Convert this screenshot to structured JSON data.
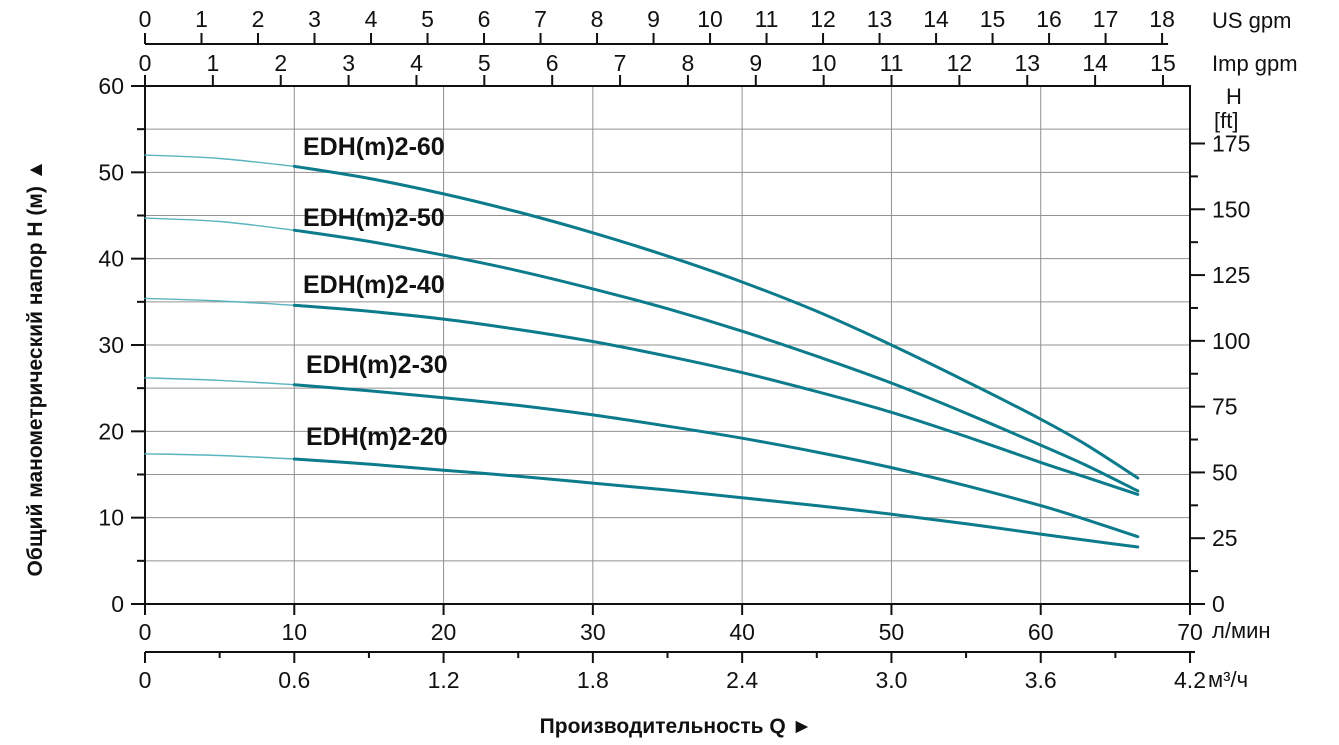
{
  "chart_data": {
    "type": "line",
    "title": "",
    "xlabel": "Производительность Q  ►",
    "ylabel": "Общий манометрический напор H (м)  ▲",
    "grid": true,
    "legend": "labels-on-chart",
    "colors": {
      "curve": "#0c7b8b",
      "curve_thin": "#5ab4be",
      "grid": "#919191",
      "axis": "#111111"
    },
    "axes": {
      "lpm": {
        "unit": "л/мин",
        "min": 0,
        "max": 70,
        "ticks": [
          0,
          10,
          20,
          30,
          40,
          50,
          60,
          70
        ]
      },
      "m3h": {
        "unit": "м³/ч",
        "lpm_per_unit": 16.667,
        "tick_labels": [
          "0",
          "0.6",
          "1.2",
          "1.8",
          "2.4",
          "3.0",
          "3.6",
          "4.2"
        ],
        "minor_step": 0.3
      },
      "us_gpm": {
        "unit": "US gpm",
        "lpm_per_unit": 3.785,
        "ticks": [
          0,
          1,
          2,
          3,
          4,
          5,
          6,
          7,
          8,
          9,
          10,
          11,
          12,
          13,
          14,
          15,
          16,
          17,
          18
        ]
      },
      "imp_gpm": {
        "unit": "Imp gpm",
        "lpm_per_unit": 4.546,
        "ticks": [
          0,
          1,
          2,
          3,
          4,
          5,
          6,
          7,
          8,
          9,
          10,
          11,
          12,
          13,
          14,
          15
        ]
      },
      "head_m": {
        "unit": "м",
        "min": 0,
        "max": 60,
        "ticks": [
          0,
          10,
          20,
          30,
          40,
          50,
          60
        ],
        "minor_ticks": [
          5,
          15,
          25,
          35,
          45,
          55
        ]
      },
      "head_ft": {
        "unit_line1": "H",
        "unit_line2": "[ft]",
        "m_per_unit": 0.3048,
        "tick_labels": [
          "0",
          "25",
          "50",
          "75",
          "100",
          "125",
          "150",
          "175"
        ],
        "minor_step": 12.5
      }
    },
    "gridlines": {
      "vertical_lpm": [
        10,
        20,
        30,
        40,
        50,
        60
      ],
      "horizontal_m": [
        5,
        10,
        15,
        20,
        25,
        30,
        35,
        40,
        45,
        50,
        55
      ]
    },
    "series": [
      {
        "name": "EDH(m)2-60",
        "thin_until_lpm": 10,
        "points": [
          [
            0,
            52.0
          ],
          [
            5,
            51.6
          ],
          [
            10,
            50.7
          ],
          [
            15,
            49.3
          ],
          [
            20,
            47.5
          ],
          [
            25,
            45.4
          ],
          [
            30,
            43.0
          ],
          [
            35,
            40.3
          ],
          [
            40,
            37.3
          ],
          [
            45,
            33.9
          ],
          [
            50,
            30.0
          ],
          [
            55,
            25.8
          ],
          [
            60,
            21.4
          ],
          [
            63,
            18.5
          ],
          [
            66.5,
            14.6
          ]
        ]
      },
      {
        "name": "EDH(m)2-50",
        "thin_until_lpm": 10,
        "points": [
          [
            0,
            44.7
          ],
          [
            5,
            44.3
          ],
          [
            10,
            43.3
          ],
          [
            15,
            42.0
          ],
          [
            20,
            40.4
          ],
          [
            25,
            38.6
          ],
          [
            30,
            36.5
          ],
          [
            35,
            34.2
          ],
          [
            40,
            31.6
          ],
          [
            45,
            28.7
          ],
          [
            50,
            25.6
          ],
          [
            55,
            22.1
          ],
          [
            60,
            18.4
          ],
          [
            63,
            16.1
          ],
          [
            66.5,
            13.1
          ]
        ]
      },
      {
        "name": "EDH(m)2-40",
        "thin_until_lpm": 10,
        "points": [
          [
            0,
            35.4
          ],
          [
            5,
            35.1
          ],
          [
            10,
            34.6
          ],
          [
            15,
            33.9
          ],
          [
            20,
            33.0
          ],
          [
            25,
            31.8
          ],
          [
            30,
            30.4
          ],
          [
            35,
            28.7
          ],
          [
            40,
            26.8
          ],
          [
            45,
            24.6
          ],
          [
            50,
            22.2
          ],
          [
            55,
            19.4
          ],
          [
            60,
            16.4
          ],
          [
            63,
            14.7
          ],
          [
            66.5,
            12.7
          ]
        ]
      },
      {
        "name": "EDH(m)2-30",
        "thin_until_lpm": 10,
        "points": [
          [
            0,
            26.2
          ],
          [
            5,
            25.9
          ],
          [
            10,
            25.4
          ],
          [
            15,
            24.7
          ],
          [
            20,
            23.9
          ],
          [
            25,
            23.0
          ],
          [
            30,
            21.9
          ],
          [
            35,
            20.6
          ],
          [
            40,
            19.2
          ],
          [
            45,
            17.6
          ],
          [
            50,
            15.8
          ],
          [
            55,
            13.7
          ],
          [
            60,
            11.4
          ],
          [
            63,
            9.8
          ],
          [
            66.5,
            7.8
          ]
        ]
      },
      {
        "name": "EDH(m)2-20",
        "thin_until_lpm": 10,
        "points": [
          [
            0,
            17.4
          ],
          [
            5,
            17.2
          ],
          [
            10,
            16.8
          ],
          [
            15,
            16.2
          ],
          [
            20,
            15.5
          ],
          [
            25,
            14.8
          ],
          [
            30,
            14.0
          ],
          [
            35,
            13.2
          ],
          [
            40,
            12.3
          ],
          [
            45,
            11.4
          ],
          [
            50,
            10.4
          ],
          [
            55,
            9.3
          ],
          [
            60,
            8.1
          ],
          [
            63,
            7.4
          ],
          [
            66.5,
            6.6
          ]
        ]
      }
    ]
  },
  "labels": {
    "us_gpm": "US gpm",
    "imp_gpm": "Imp gpm",
    "h": "H",
    "ft": "[ft]",
    "lpm": "л/мин",
    "m3h": "м³/ч",
    "x_title": "Производительность Q  ►",
    "y_title": "Общий манометрический напор H (м)  ▲"
  }
}
